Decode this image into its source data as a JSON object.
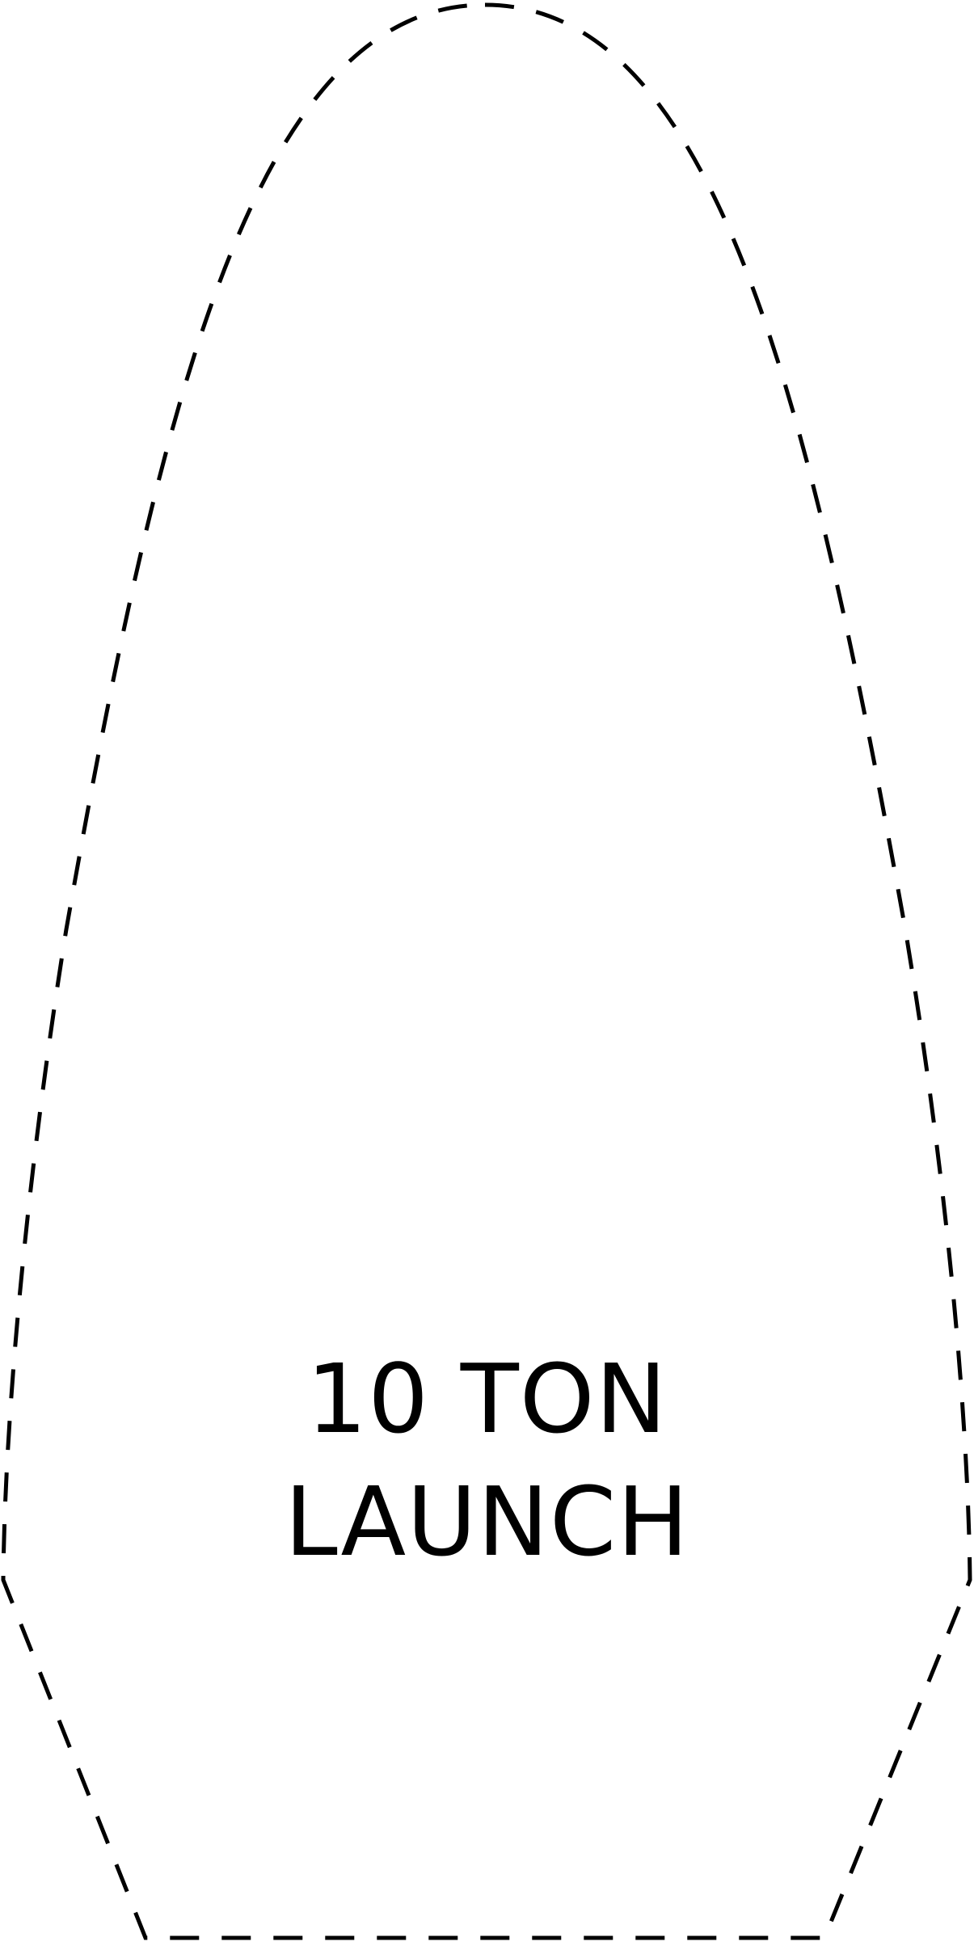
{
  "template": {
    "label_lines": [
      "10 TON",
      "LAUNCH"
    ],
    "outline_style": "dashed",
    "outline_color": "#000000",
    "background_color": "#ffffff"
  }
}
